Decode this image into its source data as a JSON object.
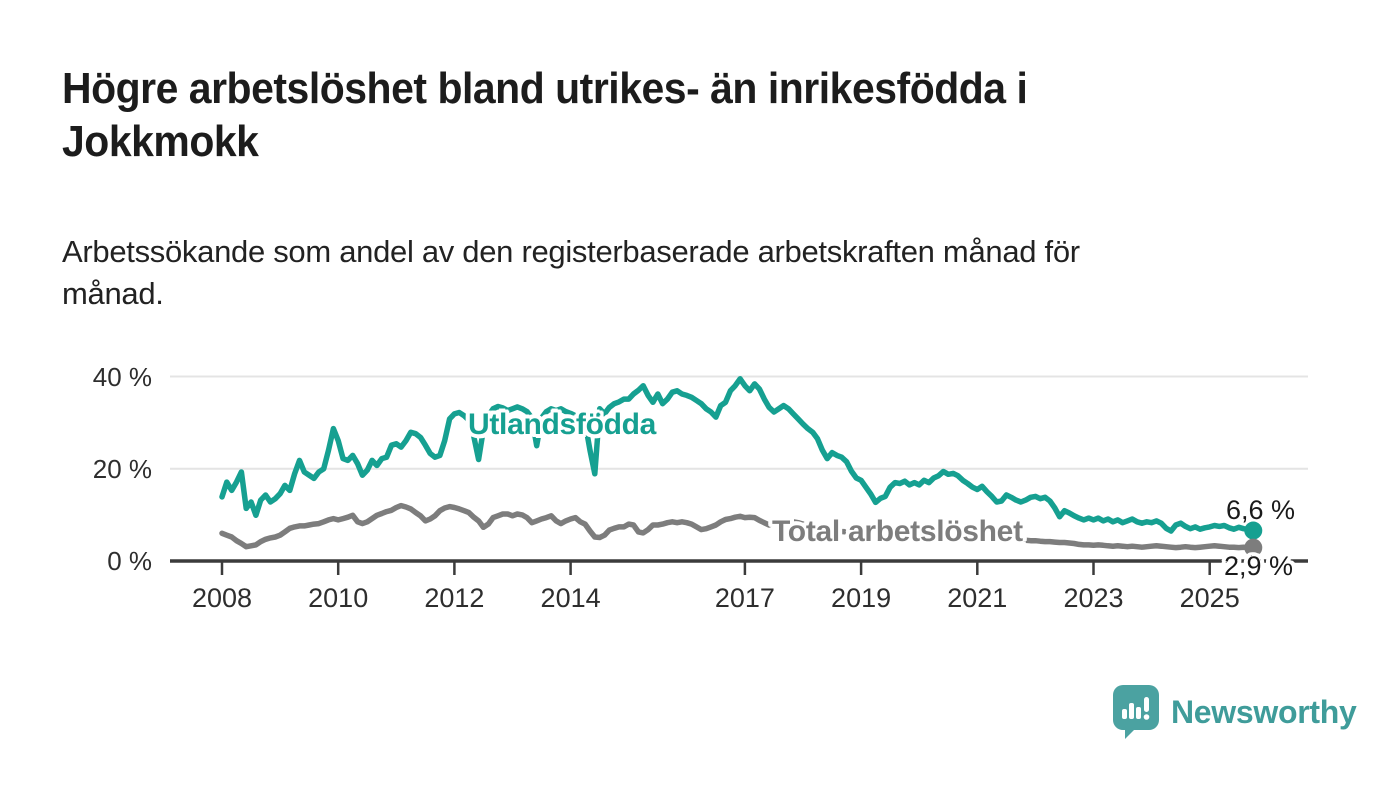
{
  "header": {
    "title": "Högre arbetslöshet bland utrikes- än inrikesfödda i\nJokkmokk",
    "subtitle": "Arbetssökande som andel av den registerbaserade arbetskraften månad för\nmånad."
  },
  "chart_data": {
    "type": "line",
    "unit": "percent",
    "frequency": "monthly",
    "x_start": "2008-01",
    "x_end": "2025-10",
    "ylim": [
      0,
      42
    ],
    "grid": "horizontal",
    "yticks": [
      {
        "value": 0,
        "label": "0 %"
      },
      {
        "value": 20,
        "label": "20 %"
      },
      {
        "value": 40,
        "label": "40 %"
      }
    ],
    "xticks": [
      {
        "year": 2008,
        "label": "2008"
      },
      {
        "year": 2010,
        "label": "2010"
      },
      {
        "year": 2012,
        "label": "2012"
      },
      {
        "year": 2014,
        "label": "2014"
      },
      {
        "year": 2017,
        "label": "2017"
      },
      {
        "year": 2019,
        "label": "2019"
      },
      {
        "year": 2021,
        "label": "2021"
      },
      {
        "year": 2023,
        "label": "2023"
      },
      {
        "year": 2025,
        "label": "2025"
      }
    ],
    "series": [
      {
        "name": "Utlandsfödda",
        "color": "#16a091",
        "end_label": "6,6 %",
        "end_value": 6.6,
        "values": [
          13.9,
          17.1,
          15.3,
          17.1,
          19.3,
          11.4,
          12.8,
          9.9,
          13.2,
          14.3,
          12.8,
          13.5,
          14.6,
          16.4,
          15.3,
          18.9,
          21.8,
          19.3,
          18.6,
          17.9,
          19.3,
          20.0,
          24.0,
          28.7,
          26.1,
          22.2,
          21.8,
          22.9,
          21.1,
          18.6,
          19.7,
          21.8,
          20.7,
          22.2,
          22.5,
          25.1,
          25.4,
          24.7,
          26.1,
          27.9,
          27.6,
          26.8,
          25.1,
          23.3,
          22.5,
          22.9,
          26.1,
          30.8,
          31.9,
          32.2,
          31.5,
          30.5,
          27.0,
          22.0,
          28.5,
          31.5,
          33.0,
          33.5,
          33.2,
          32.6,
          33.0,
          33.4,
          33.0,
          32.4,
          31.0,
          25.0,
          31.0,
          32.4,
          33.0,
          32.6,
          33.0,
          32.4,
          32.0,
          31.5,
          30.6,
          30.0,
          24.0,
          18.9,
          33.0,
          31.9,
          33.3,
          34.1,
          34.5,
          35.1,
          35.1,
          36.2,
          37.0,
          38.0,
          35.9,
          34.4,
          36.2,
          34.1,
          35.1,
          36.6,
          36.9,
          36.2,
          35.9,
          35.5,
          34.8,
          34.1,
          33.0,
          32.3,
          31.2,
          33.7,
          34.4,
          36.9,
          38.0,
          39.5,
          38.0,
          36.9,
          38.4,
          37.3,
          35.1,
          33.3,
          32.3,
          33.0,
          33.7,
          33.0,
          31.9,
          30.8,
          29.7,
          28.7,
          27.9,
          26.5,
          24.0,
          22.2,
          23.5,
          22.9,
          22.5,
          21.5,
          19.5,
          18.0,
          17.5,
          16.0,
          14.5,
          12.7,
          13.6,
          14.0,
          16.0,
          17.0,
          16.8,
          17.3,
          16.5,
          17.0,
          16.5,
          17.5,
          17.0,
          18.0,
          18.5,
          19.4,
          18.8,
          19.0,
          18.5,
          17.5,
          16.8,
          16.0,
          15.5,
          16.2,
          15.0,
          14.0,
          12.8,
          13.0,
          14.3,
          13.8,
          13.2,
          12.8,
          13.2,
          13.8,
          14.0,
          13.5,
          13.8,
          13.0,
          11.5,
          9.6,
          10.9,
          10.4,
          9.8,
          9.3,
          8.9,
          9.3,
          8.9,
          9.3,
          8.7,
          9.1,
          8.5,
          8.9,
          8.3,
          8.7,
          9.1,
          8.5,
          8.2,
          8.5,
          8.3,
          8.7,
          8.2,
          7.1,
          6.5,
          7.8,
          8.2,
          7.5,
          7.0,
          7.4,
          6.9,
          7.2,
          7.4,
          7.7,
          7.5,
          7.7,
          7.2,
          6.9,
          7.3,
          7.0,
          6.8,
          6.6
        ]
      },
      {
        "name": "Total arbetslöshet",
        "color": "#7d7d7d",
        "end_label": "2,9 %",
        "end_value": 2.9,
        "values": [
          6.0,
          5.6,
          5.2,
          4.4,
          3.8,
          3.1,
          3.3,
          3.5,
          4.2,
          4.7,
          5.0,
          5.2,
          5.6,
          6.3,
          7.1,
          7.4,
          7.6,
          7.6,
          7.8,
          8.0,
          8.1,
          8.5,
          8.9,
          9.2,
          8.9,
          9.2,
          9.5,
          9.9,
          8.5,
          8.1,
          8.5,
          9.2,
          9.9,
          10.3,
          10.7,
          11.0,
          11.6,
          12.0,
          11.7,
          11.3,
          10.5,
          9.8,
          8.7,
          9.1,
          9.8,
          10.9,
          11.5,
          11.8,
          11.6,
          11.3,
          10.9,
          10.5,
          9.5,
          8.7,
          7.3,
          8.0,
          9.4,
          9.8,
          10.2,
          10.2,
          9.8,
          10.2,
          10.0,
          9.4,
          8.3,
          8.7,
          9.1,
          9.4,
          9.8,
          8.7,
          8.1,
          8.7,
          9.1,
          9.4,
          8.5,
          8.0,
          6.5,
          5.2,
          5.1,
          5.6,
          6.7,
          7.1,
          7.4,
          7.4,
          8.0,
          7.8,
          6.3,
          6.1,
          6.8,
          7.8,
          7.8,
          8.0,
          8.3,
          8.5,
          8.3,
          8.5,
          8.3,
          8.0,
          7.4,
          6.8,
          7.0,
          7.4,
          7.8,
          8.5,
          9.0,
          9.2,
          9.5,
          9.7,
          9.4,
          9.5,
          9.4,
          8.8,
          8.3,
          7.8,
          8.5,
          8.8,
          9.0,
          8.8,
          8.5,
          8.3,
          8.0,
          7.8,
          7.5,
          7.2,
          7.0,
          6.8,
          6.6,
          6.5,
          6.4,
          6.3,
          6.2,
          6.1,
          6.0,
          5.9,
          5.8,
          5.7,
          5.6,
          5.6,
          5.7,
          5.8,
          5.8,
          5.9,
          5.9,
          6.0,
          6.0,
          6.1,
          6.3,
          6.6,
          6.8,
          6.9,
          6.8,
          6.7,
          6.5,
          6.3,
          6.1,
          6.0,
          5.9,
          5.8,
          5.6,
          5.4,
          5.2,
          5.0,
          4.9,
          4.8,
          4.7,
          4.6,
          4.5,
          4.4,
          4.4,
          4.3,
          4.2,
          4.2,
          4.1,
          4.0,
          4.0,
          3.9,
          3.8,
          3.6,
          3.5,
          3.5,
          3.4,
          3.5,
          3.4,
          3.3,
          3.2,
          3.3,
          3.2,
          3.1,
          3.2,
          3.1,
          3.0,
          3.1,
          3.2,
          3.3,
          3.2,
          3.1,
          3.0,
          2.9,
          3.0,
          3.1,
          3.0,
          2.9,
          3.0,
          3.1,
          3.2,
          3.3,
          3.2,
          3.1,
          3.0,
          3.0,
          2.9,
          3.0,
          2.9,
          2.9
        ]
      }
    ],
    "colors": {
      "axis": "#3b3b3b",
      "grid": "#e4e4e4",
      "tick_text": "#2e2e2e"
    }
  },
  "footer": {
    "brand": "Newsworthy",
    "logo_icon": "bar-chart-speech-bubble-icon",
    "brand_color": "#4ba2a1"
  }
}
